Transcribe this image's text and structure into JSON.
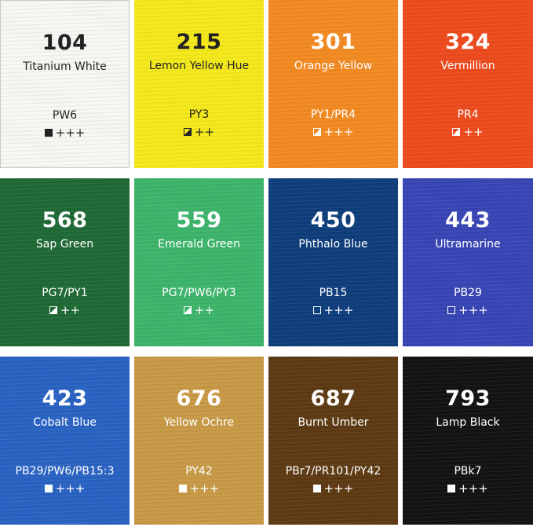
{
  "swatches": [
    {
      "number": "104",
      "name": "Titanium White",
      "pigment": "PW6",
      "opacity": "opaque",
      "rating": "+++",
      "color": "#f7f7f4",
      "text_color": "#222222"
    },
    {
      "number": "215",
      "name": "Lemon Yellow Hue",
      "pigment": "PY3",
      "opacity": "semi-opaque",
      "rating": "++",
      "color": "#f5e91b",
      "text_color": "#222222"
    },
    {
      "number": "301",
      "name": "Orange Yellow",
      "pigment": "PY1/PR4",
      "opacity": "semi-opaque",
      "rating": "+++",
      "color": "#f38a22",
      "text_color": "#ffffff"
    },
    {
      "number": "324",
      "name": "Vermillion",
      "pigment": "PR4",
      "opacity": "semi-opaque",
      "rating": "++",
      "color": "#ee4b1d",
      "text_color": "#ffffff"
    },
    {
      "number": "568",
      "name": "Sap Green",
      "pigment": "PG7/PY1",
      "opacity": "semi-opaque",
      "rating": "++",
      "color": "#1f6a35",
      "text_color": "#ffffff"
    },
    {
      "number": "559",
      "name": "Emerald Green",
      "pigment": "PG7/PW6/PY3",
      "opacity": "semi-opaque",
      "rating": "++",
      "color": "#3db56b",
      "text_color": "#ffffff"
    },
    {
      "number": "450",
      "name": "Phthalo Blue",
      "pigment": "PB15",
      "opacity": "transparent",
      "rating": "+++",
      "color": "#0f3e7c",
      "text_color": "#ffffff"
    },
    {
      "number": "443",
      "name": "Ultramarine",
      "pigment": "PB29",
      "opacity": "transparent",
      "rating": "+++",
      "color": "#3846b6",
      "text_color": "#ffffff"
    },
    {
      "number": "423",
      "name": "Cobalt Blue",
      "pigment": "PB29/PW6/PB15:3",
      "opacity": "opaque",
      "rating": "+++",
      "color": "#2a63c3",
      "text_color": "#ffffff"
    },
    {
      "number": "676",
      "name": "Yellow Ochre",
      "pigment": "PY42",
      "opacity": "opaque",
      "rating": "+++",
      "color": "#c89a46",
      "text_color": "#ffffff"
    },
    {
      "number": "687",
      "name": "Burnt Umber",
      "pigment": "PBr7/PR101/PY42",
      "opacity": "opaque",
      "rating": "+++",
      "color": "#5d3a13",
      "text_color": "#ffffff"
    },
    {
      "number": "793",
      "name": "Lamp Black",
      "pigment": "PBk7",
      "opacity": "opaque",
      "rating": "+++",
      "color": "#151213",
      "text_color": "#ffffff"
    }
  ]
}
